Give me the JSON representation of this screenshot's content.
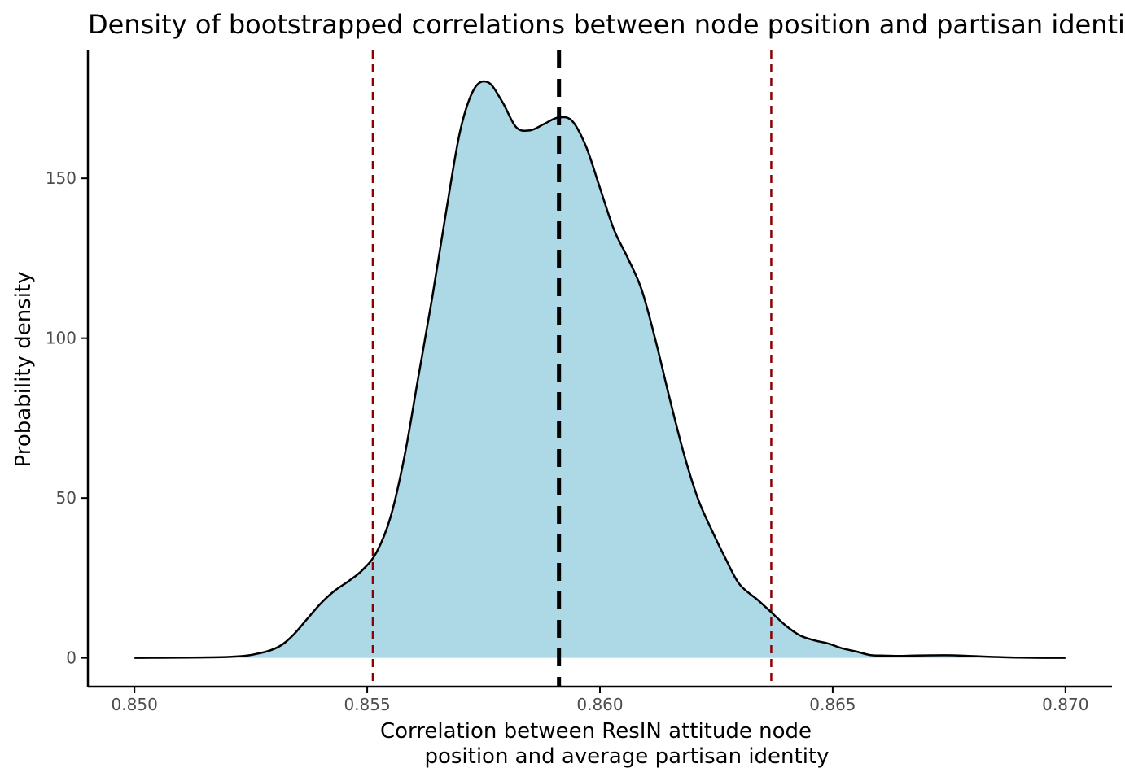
{
  "chart_data": {
    "type": "area",
    "title": "Density of bootstrapped correlations between node position and partisan identity",
    "xlabel_lines": [
      "Correlation between ResIN attitude node",
      "position and average partisan identity"
    ],
    "ylabel": "Probability density",
    "xlim": [
      0.849,
      0.871
    ],
    "ylim": [
      -9,
      190
    ],
    "x_ticks": [
      0.85,
      0.855,
      0.86,
      0.865,
      0.87
    ],
    "x_tick_labels": [
      "0.850",
      "0.855",
      "0.860",
      "0.865",
      "0.870"
    ],
    "y_ticks": [
      0,
      50,
      100,
      150
    ],
    "y_tick_labels": [
      "0",
      "50",
      "100",
      "150"
    ],
    "grid": false,
    "legend": "none",
    "series": [
      {
        "x": [
          0.85,
          0.852,
          0.8527,
          0.8531,
          0.8534,
          0.8537,
          0.854,
          0.8543,
          0.8546,
          0.8549,
          0.8552,
          0.8555,
          0.8558,
          0.8561,
          0.8564,
          0.8567,
          0.857,
          0.8573,
          0.8576,
          0.8579,
          0.8582,
          0.8585,
          0.8588,
          0.8591,
          0.8594,
          0.8597,
          0.86,
          0.8603,
          0.8606,
          0.8609,
          0.8612,
          0.8615,
          0.8618,
          0.8621,
          0.8624,
          0.8627,
          0.863,
          0.8634,
          0.8637,
          0.864,
          0.8643,
          0.8646,
          0.8649,
          0.8652,
          0.8655,
          0.8658,
          0.8661,
          0.8664,
          0.8667,
          0.8671,
          0.8676,
          0.8681,
          0.869,
          0.87
        ],
        "y": [
          0,
          0.3,
          1.5,
          3.5,
          7,
          12,
          17,
          21,
          24,
          27.5,
          33,
          44,
          63,
          88,
          113,
          140,
          165,
          178,
          180,
          174,
          166,
          165,
          167,
          169,
          168,
          160,
          147,
          134,
          125,
          115,
          99,
          81,
          64,
          50,
          40,
          31,
          23,
          18,
          14,
          10,
          7,
          5.5,
          4.5,
          3,
          2,
          0.9,
          0.7,
          0.6,
          0.7,
          0.8,
          0.8,
          0.5,
          0.1,
          0
        ]
      }
    ],
    "reference_lines": [
      {
        "x": 0.85512,
        "style": "dashed",
        "role": "lower"
      },
      {
        "x": 0.85912,
        "style": "dashed-thick",
        "role": "center"
      },
      {
        "x": 0.86368,
        "style": "dashed",
        "role": "upper"
      }
    ],
    "colors": {
      "fill": "#add8e6",
      "curve": "#000000",
      "interval_line": "#8b0000",
      "center_line": "#000000",
      "axis": "#000000",
      "tick_label": "#4d4d4d"
    }
  }
}
